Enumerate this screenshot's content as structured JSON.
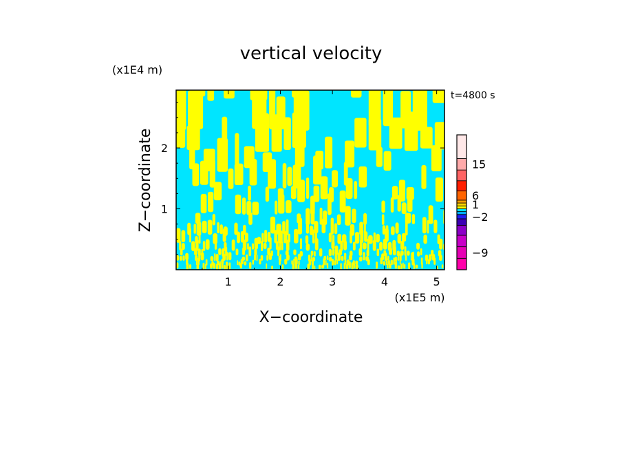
{
  "chart_data": {
    "type": "heatmap",
    "title": "vertical velocity",
    "time_label": "t=4800 s",
    "xlabel": "X−coordinate",
    "ylabel": "Z−coordinate",
    "x_unit": "(x1E5 m)",
    "y_unit": "(x1E4 m)",
    "xlim": [
      0,
      5.15
    ],
    "ylim": [
      0,
      2.95
    ],
    "x_ticks": [
      "1",
      "2",
      "3",
      "4",
      "5"
    ],
    "y_ticks": [
      "1",
      "2"
    ],
    "x_tick_values": [
      1,
      2,
      3,
      4,
      5
    ],
    "y_tick_values": [
      1,
      2
    ],
    "field_colors": {
      "negative": "#00e5ff",
      "positive": "#ffff00"
    },
    "colorbar": {
      "levels_bottom_to_top": [
        {
          "color": "#ff00aa",
          "label": ""
        },
        {
          "color": "#e600b4",
          "label": "−9"
        },
        {
          "color": "#c800c8",
          "label": ""
        },
        {
          "color": "#8c00c8",
          "label": ""
        },
        {
          "color": "#3c00b4",
          "label": ""
        },
        {
          "color": "#1e1ef0",
          "label": "−2"
        },
        {
          "color": "#00aaff",
          "label": ""
        },
        {
          "color": "#00e5ff",
          "label": ""
        },
        {
          "color": "#ffff00",
          "label": ""
        },
        {
          "color": "#ffd200",
          "label": "1"
        },
        {
          "color": "#ffa000",
          "label": ""
        },
        {
          "color": "#ff6400",
          "label": "6"
        },
        {
          "color": "#ff1e00",
          "label": ""
        },
        {
          "color": "#ff6464",
          "label": ""
        },
        {
          "color": "#ffaaaa",
          "label": "15"
        },
        {
          "color": "#ffe8e8",
          "label": ""
        }
      ]
    }
  }
}
